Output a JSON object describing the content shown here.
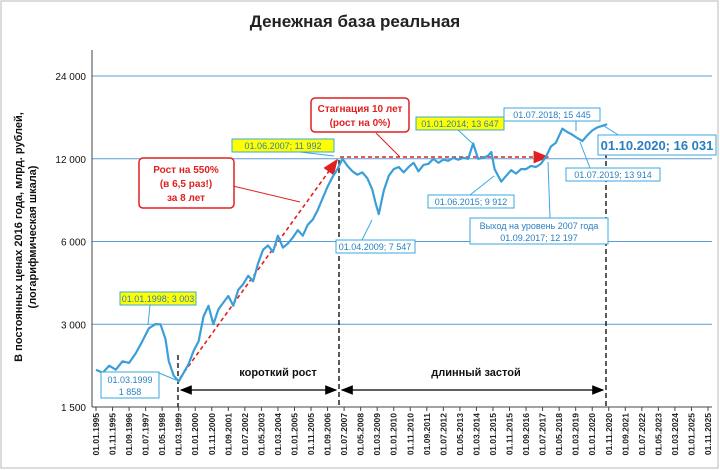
{
  "chart_data": {
    "type": "line",
    "title": "Денежная база реальная",
    "ylabel": "В постоянных ценах 2016 года, млрд. рублей, (логарифмическая шкала)",
    "xlabel": "",
    "y_scale": "log",
    "ylim": [
      1500,
      24000
    ],
    "y_ticks": [
      1500,
      3000,
      6000,
      12000,
      24000
    ],
    "y_tick_labels": [
      "1 500",
      "3 000",
      "6 000",
      "12 000",
      "24 000"
    ],
    "x_tick_labels": [
      "01.01.1995",
      "01.11.1995",
      "01.09.1996",
      "01.07.1997",
      "01.05.1998",
      "01.03.1999",
      "01.01.2000",
      "01.11.2000",
      "01.09.2001",
      "01.07.2002",
      "01.05.2003",
      "01.03.2004",
      "01.01.2005",
      "01.11.2005",
      "01.09.2006",
      "01.07.2007",
      "01.05.2008",
      "01.03.2009",
      "01.01.2010",
      "01.11.2010",
      "01.09.2011",
      "01.07.2012",
      "01.05.2013",
      "01.03.2014",
      "01.01.2015",
      "01.11.2015",
      "01.09.2016",
      "01.07.2017",
      "01.05.2018",
      "01.03.2019",
      "01.01.2020",
      "01.11.2020",
      "01.09.2021",
      "01.07.2022",
      "01.05.2023",
      "01.03.2024",
      "01.01.2025",
      "01.11.2025"
    ],
    "grid": true,
    "series": [
      {
        "color": "#3a9fd8",
        "points": [
          [
            "1995-01",
            2050
          ],
          [
            "1995-05",
            2000
          ],
          [
            "1995-09",
            2120
          ],
          [
            "1996-01",
            2050
          ],
          [
            "1996-05",
            2200
          ],
          [
            "1996-09",
            2170
          ],
          [
            "1997-01",
            2350
          ],
          [
            "1997-05",
            2600
          ],
          [
            "1997-09",
            2900
          ],
          [
            "1998-01",
            3003
          ],
          [
            "1998-04",
            3000
          ],
          [
            "1998-07",
            2650
          ],
          [
            "1998-09",
            2200
          ],
          [
            "1998-12",
            1950
          ],
          [
            "1999-03",
            1858
          ],
          [
            "1999-06",
            2000
          ],
          [
            "1999-09",
            2150
          ],
          [
            "1999-12",
            2400
          ],
          [
            "2000-03",
            2600
          ],
          [
            "2000-06",
            3200
          ],
          [
            "2000-09",
            3500
          ],
          [
            "2000-12",
            3000
          ],
          [
            "2001-03",
            3400
          ],
          [
            "2001-06",
            3600
          ],
          [
            "2001-09",
            3800
          ],
          [
            "2001-12",
            3500
          ],
          [
            "2002-03",
            4000
          ],
          [
            "2002-06",
            4200
          ],
          [
            "2002-09",
            4500
          ],
          [
            "2002-12",
            4300
          ],
          [
            "2003-03",
            5000
          ],
          [
            "2003-06",
            5600
          ],
          [
            "2003-09",
            5800
          ],
          [
            "2003-12",
            5500
          ],
          [
            "2004-03",
            6300
          ],
          [
            "2004-06",
            5700
          ],
          [
            "2004-09",
            5900
          ],
          [
            "2004-12",
            6200
          ],
          [
            "2005-03",
            6600
          ],
          [
            "2005-06",
            6300
          ],
          [
            "2005-09",
            6900
          ],
          [
            "2005-12",
            7200
          ],
          [
            "2006-03",
            7800
          ],
          [
            "2006-06",
            8600
          ],
          [
            "2006-09",
            9500
          ],
          [
            "2006-12",
            10300
          ],
          [
            "2007-03",
            11000
          ],
          [
            "2007-06",
            11992
          ],
          [
            "2007-09",
            11300
          ],
          [
            "2007-12",
            10800
          ],
          [
            "2008-03",
            10500
          ],
          [
            "2008-06",
            10700
          ],
          [
            "2008-09",
            10200
          ],
          [
            "2008-12",
            9300
          ],
          [
            "2009-02",
            8300
          ],
          [
            "2009-04",
            7547
          ],
          [
            "2009-07",
            9200
          ],
          [
            "2009-10",
            10400
          ],
          [
            "2010-01",
            11000
          ],
          [
            "2010-04",
            11200
          ],
          [
            "2010-07",
            10700
          ],
          [
            "2010-10",
            11200
          ],
          [
            "2011-01",
            11600
          ],
          [
            "2011-04",
            10800
          ],
          [
            "2011-07",
            11400
          ],
          [
            "2011-10",
            11500
          ],
          [
            "2012-01",
            12000
          ],
          [
            "2012-04",
            11600
          ],
          [
            "2012-07",
            11900
          ],
          [
            "2012-10",
            11800
          ],
          [
            "2013-01",
            12100
          ],
          [
            "2013-04",
            11900
          ],
          [
            "2013-07",
            12100
          ],
          [
            "2013-10",
            12000
          ],
          [
            "2014-01",
            13647
          ],
          [
            "2014-04",
            12000
          ],
          [
            "2014-07",
            12100
          ],
          [
            "2014-10",
            12300
          ],
          [
            "2014-12",
            12700
          ],
          [
            "2015-02",
            11000
          ],
          [
            "2015-06",
            9912
          ],
          [
            "2015-09",
            10400
          ],
          [
            "2015-12",
            10900
          ],
          [
            "2016-03",
            10600
          ],
          [
            "2016-06",
            11000
          ],
          [
            "2016-09",
            11000
          ],
          [
            "2016-12",
            11300
          ],
          [
            "2017-03",
            11200
          ],
          [
            "2017-06",
            11500
          ],
          [
            "2017-09",
            12197
          ],
          [
            "2017-12",
            13300
          ],
          [
            "2018-03",
            13700
          ],
          [
            "2018-07",
            15445
          ],
          [
            "2018-10",
            15000
          ],
          [
            "2018-12",
            14800
          ],
          [
            "2019-03",
            14400
          ],
          [
            "2019-07",
            13914
          ],
          [
            "2019-10",
            14600
          ],
          [
            "2020-01",
            15200
          ],
          [
            "2020-04",
            15600
          ],
          [
            "2020-07",
            15800
          ],
          [
            "2020-10",
            16031
          ]
        ]
      }
    ]
  },
  "annotations": {
    "p1998": "01.01.1998;  3 003",
    "p1999a": "01.03.1999",
    "p1999b": "1 858",
    "p2007": "01.06.2007;  11 992",
    "p2009": "01.04.2009;  7 547",
    "p2014": "01.01.2014;  13 647",
    "p2015": "01.06.2015;  9 912",
    "p2017a": "Выход на уровень  2007 года",
    "p2017b": "01.09.2017;  12 197",
    "p2018": "01.07.2018;  15 445",
    "p2019": "01.07.2019;  13 914",
    "p2020": "01.10.2020;  16 031",
    "growth1": "Рост на 550%",
    "growth2": "(в 6,5 раз!)",
    "growth3": "за 8 лет",
    "stag1": "Стагнация 10 лет",
    "stag2": "(рост на 0%)",
    "short_growth": "короткий рост",
    "long_stag": "длинный застой"
  },
  "colors": {
    "line": "#3a9fd8",
    "highlight": "#ffff00",
    "arrow": "#e02020",
    "callout_border": "#3aa8e0",
    "red_box_border": "#e02020"
  }
}
